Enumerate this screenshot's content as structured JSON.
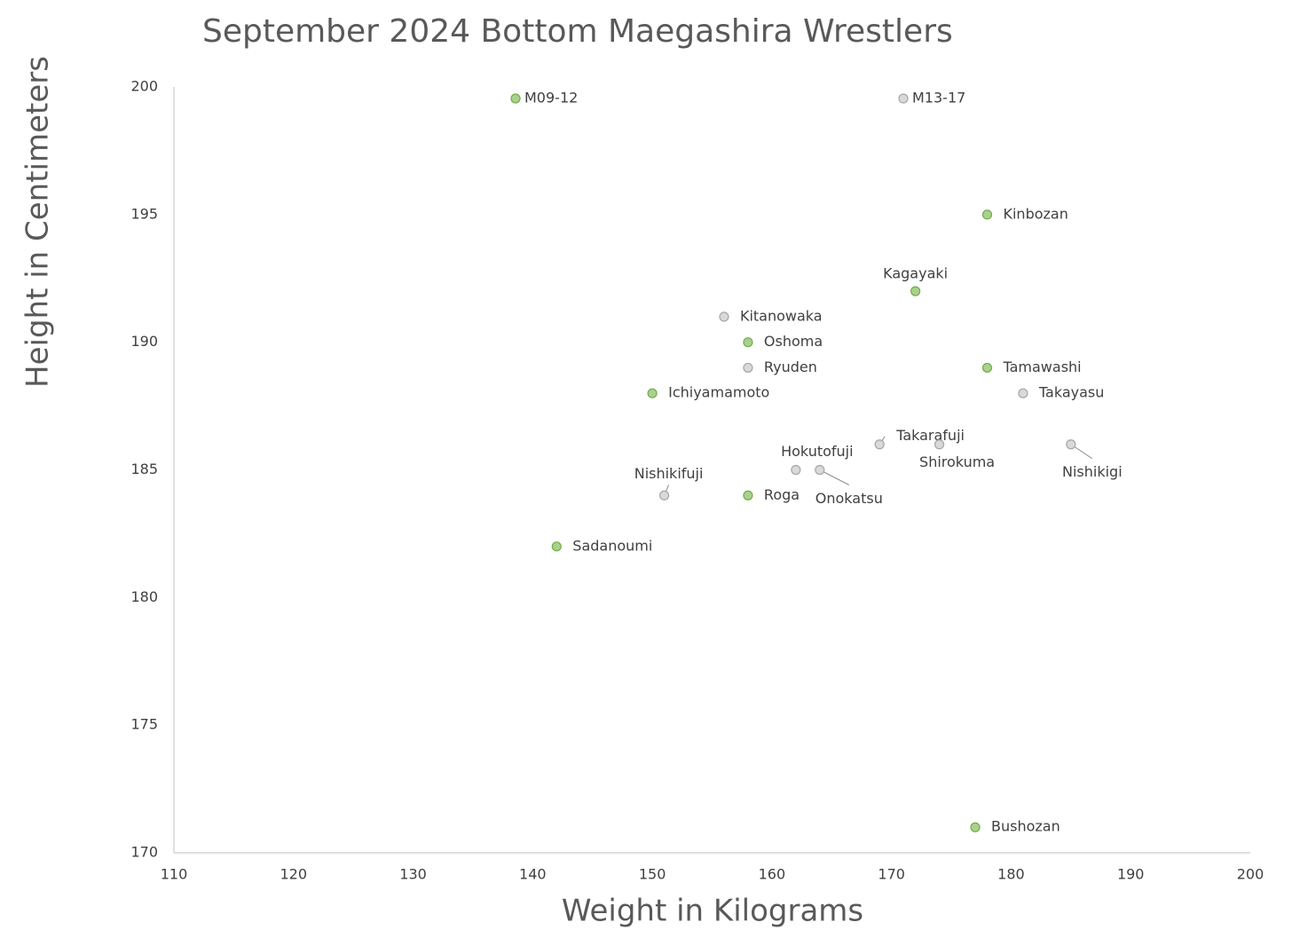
{
  "chart_data": {
    "type": "scatter",
    "title": "September 2024 Bottom Maegashira Wrestlers",
    "x_label": "Weight in Kilograms",
    "y_label": "Height in Centimeters",
    "xlim": [
      110,
      200
    ],
    "xticks": [
      110,
      120,
      130,
      140,
      150,
      160,
      170,
      180,
      190,
      200
    ],
    "ylim": [
      170,
      200
    ],
    "yticks": [
      170,
      175,
      180,
      185,
      190,
      195,
      200
    ],
    "grid": false,
    "legend": "top",
    "series": [
      {
        "name": "M09-12",
        "color": "#a9d18e",
        "edge": "#70ad47",
        "labels": [
          "Kinbozan",
          "Kagayaki",
          "Oshoma",
          "Tamawashi",
          "Ichiyamamoto",
          "Roga",
          "Sadanoumi",
          "Bushozan"
        ],
        "x": [
          178,
          172,
          158,
          178,
          150,
          158,
          142,
          177
        ],
        "values": [
          195,
          192,
          190,
          189,
          188,
          184,
          182,
          171
        ]
      },
      {
        "name": "M13-17",
        "color": "#d9d9d9",
        "edge": "#a6a6a6",
        "labels": [
          "Kitanowaka",
          "Ryuden",
          "Takayasu",
          "Takarafuji",
          "Shirokuma",
          "Nishikigi",
          "Hokutofuji",
          "Onokatsu",
          "Nishikifuji"
        ],
        "x": [
          156,
          158,
          181,
          169,
          174,
          185,
          162,
          164,
          151
        ],
        "values": [
          191,
          189,
          188,
          186,
          186,
          186,
          185,
          185,
          184
        ]
      }
    ]
  }
}
